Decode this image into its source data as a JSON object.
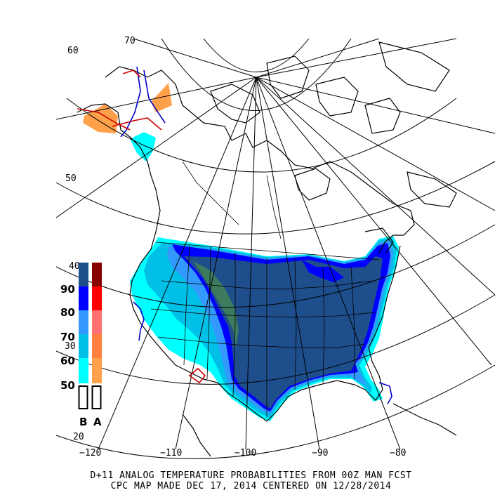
{
  "colors": {
    "below": [
      "#00ffff",
      "#00c0e8",
      "#3399ff",
      "#0000ff",
      "#003399",
      "#1f4e8c"
    ],
    "above": [
      "#ffa04a",
      "#ff8040",
      "#ff7070",
      "#ff0000",
      "#880000"
    ],
    "coast": "#000000",
    "state_line": "#0000cc",
    "red_line": "#cc0000"
  },
  "lat_labels": [
    "70",
    "60",
    "50",
    "40",
    "30",
    "20"
  ],
  "lon_labels": [
    "−120",
    "−110",
    "−100",
    "−90",
    "−80"
  ],
  "legend": {
    "probabilities": [
      "90",
      "80",
      "70",
      "60",
      "50"
    ],
    "column_b": "B",
    "column_a": "A"
  },
  "caption": {
    "line1": "D+11 ANALOG TEMPERATURE PROBABILITIES FROM 00Z MAN FCST",
    "line2": "CPC MAP MADE DEC 17, 2014 CENTERED ON 12/28/2014"
  }
}
